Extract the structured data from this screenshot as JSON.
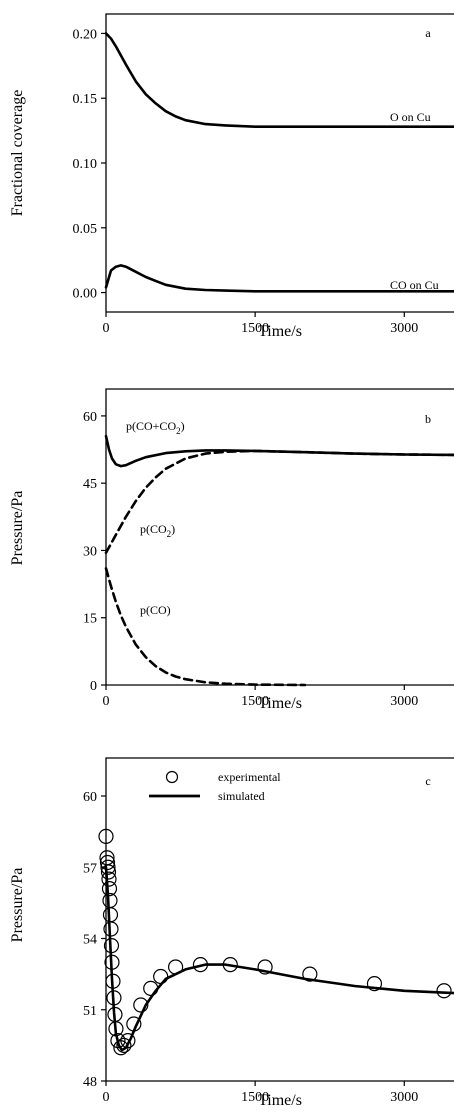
{
  "chart_data": [
    {
      "panel": "a",
      "type": "line",
      "xlabel": "Time/s",
      "ylabel": "Fractional coverage",
      "xlim": [
        0,
        3500
      ],
      "ylim": [
        -0.015,
        0.215
      ],
      "x_ticks": [
        0,
        1500,
        3000
      ],
      "x_tick_labels": [
        "0",
        "1500",
        "3000"
      ],
      "y_ticks": [
        0.0,
        0.05,
        0.1,
        0.15,
        0.2
      ],
      "y_tick_labels": [
        "0.00",
        "0.05",
        "0.10",
        "0.15",
        "0.20"
      ],
      "series": [
        {
          "label": "O on Cu",
          "style": "solid",
          "x": [
            0,
            50,
            100,
            200,
            300,
            400,
            500,
            600,
            700,
            800,
            1000,
            1200,
            1500,
            2000,
            2500,
            3000,
            3500
          ],
          "y": [
            0.2,
            0.196,
            0.19,
            0.176,
            0.163,
            0.153,
            0.146,
            0.14,
            0.136,
            0.133,
            0.13,
            0.129,
            0.128,
            0.128,
            0.128,
            0.128,
            0.128
          ]
        },
        {
          "label": "CO on Cu",
          "style": "solid",
          "x": [
            0,
            50,
            100,
            150,
            200,
            300,
            400,
            500,
            600,
            800,
            1000,
            1200,
            1500,
            2000,
            3000,
            3500
          ],
          "y": [
            0.004,
            0.017,
            0.02,
            0.021,
            0.02,
            0.016,
            0.012,
            0.009,
            0.006,
            0.003,
            0.002,
            0.0015,
            0.001,
            0.001,
            0.001,
            0.001
          ]
        }
      ]
    },
    {
      "panel": "b",
      "type": "line",
      "xlabel": "Time/s",
      "ylabel": "Pressure/Pa",
      "xlim": [
        0,
        3500
      ],
      "ylim": [
        0,
        66
      ],
      "x_ticks": [
        0,
        1500,
        3000
      ],
      "x_tick_labels": [
        "0",
        "1500",
        "3000"
      ],
      "y_ticks": [
        0,
        15,
        30,
        45,
        60
      ],
      "y_tick_labels": [
        "0",
        "15",
        "30",
        "45",
        "60"
      ],
      "series": [
        {
          "label": "p(CO+CO₂)",
          "style": "solid",
          "x": [
            0,
            30,
            60,
            100,
            150,
            200,
            300,
            400,
            600,
            800,
            1000,
            1200,
            1500,
            2000,
            2500,
            3000,
            3500
          ],
          "y": [
            55.5,
            52.5,
            50.5,
            49.2,
            48.8,
            49.0,
            50.0,
            50.8,
            51.7,
            52.1,
            52.3,
            52.3,
            52.2,
            51.9,
            51.6,
            51.4,
            51.3
          ]
        },
        {
          "label": "p(CO₂)",
          "style": "dashed",
          "x": [
            0,
            50,
            100,
            200,
            300,
            400,
            500,
            600,
            800,
            1000,
            1200,
            1500,
            2000,
            2500,
            3000,
            3500
          ],
          "y": [
            29.5,
            31.5,
            33.5,
            37.5,
            41.0,
            44.0,
            46.3,
            48.2,
            50.5,
            51.6,
            52.0,
            52.2,
            51.9,
            51.6,
            51.4,
            51.3
          ]
        },
        {
          "label": "p(CO)",
          "style": "dashed",
          "x": [
            0,
            50,
            100,
            150,
            200,
            300,
            400,
            500,
            600,
            700,
            800,
            1000,
            1200,
            1500,
            2000
          ],
          "y": [
            26.0,
            22.0,
            18.5,
            15.5,
            13.0,
            9.0,
            6.2,
            4.2,
            2.8,
            1.9,
            1.3,
            0.6,
            0.3,
            0.1,
            0.0
          ]
        }
      ]
    },
    {
      "panel": "c",
      "type": "line",
      "xlabel": "Time/s",
      "ylabel": "Pressure/Pa",
      "xlim": [
        0,
        3500
      ],
      "ylim": [
        48,
        61.6
      ],
      "x_ticks": [
        0,
        1500,
        3000
      ],
      "x_tick_labels": [
        "0",
        "1500",
        "3000"
      ],
      "y_ticks": [
        48,
        51,
        54,
        57,
        60
      ],
      "y_tick_labels": [
        "48",
        "51",
        "54",
        "57",
        "60"
      ],
      "legend": [
        "experimental",
        "simulated"
      ],
      "legend_placement": "top-left",
      "series": [
        {
          "label": "experimental",
          "style": "open-circle-markers",
          "x": [
            0,
            10,
            15,
            20,
            25,
            30,
            35,
            40,
            45,
            50,
            55,
            60,
            70,
            80,
            90,
            100,
            120,
            150,
            180,
            220,
            280,
            350,
            450,
            550,
            700,
            950,
            1250,
            1600,
            2050,
            2700,
            3400
          ],
          "y": [
            58.3,
            57.4,
            57.2,
            57.0,
            56.8,
            56.5,
            56.1,
            55.6,
            55.0,
            54.4,
            53.7,
            53.0,
            52.2,
            51.5,
            50.8,
            50.2,
            49.7,
            49.4,
            49.5,
            49.7,
            50.4,
            51.2,
            51.9,
            52.4,
            52.8,
            52.9,
            52.9,
            52.8,
            52.5,
            52.1,
            51.8
          ]
        },
        {
          "label": "simulated",
          "style": "solid",
          "x": [
            0,
            20,
            40,
            60,
            80,
            100,
            130,
            160,
            200,
            250,
            300,
            400,
            500,
            600,
            800,
            1000,
            1200,
            1500,
            2000,
            2500,
            3000,
            3500
          ],
          "y": [
            57.0,
            55.8,
            54.0,
            52.3,
            50.9,
            50.0,
            49.5,
            49.3,
            49.4,
            49.8,
            50.3,
            51.2,
            51.8,
            52.3,
            52.7,
            52.9,
            52.9,
            52.7,
            52.3,
            52.0,
            51.8,
            51.7
          ]
        }
      ]
    }
  ],
  "panels": [
    {
      "letter": "a",
      "annotations": [
        {
          "text": "O on Cu",
          "x": 2300,
          "y": 0.137
        },
        {
          "text": "CO on Cu",
          "x": 2300,
          "y": 0.009
        }
      ]
    },
    {
      "letter": "b",
      "annotations": [
        {
          "text": "p(CO+CO",
          "sub": "2",
          "tail": ")",
          "x": 150,
          "y": 57.5
        },
        {
          "text": "p(CO",
          "sub": "2",
          "tail": ")",
          "x": 400,
          "y": 33.5
        },
        {
          "text": "p(CO)",
          "x": 400,
          "y": 14.5
        }
      ]
    },
    {
      "letter": "c",
      "annotations": []
    }
  ]
}
